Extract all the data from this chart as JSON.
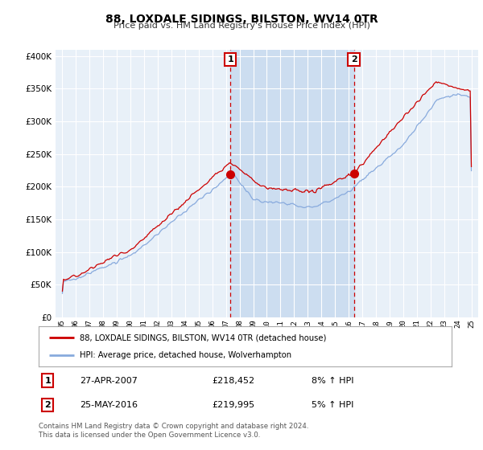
{
  "title": "88, LOXDALE SIDINGS, BILSTON, WV14 0TR",
  "subtitle": "Price paid vs. HM Land Registry's House Price Index (HPI)",
  "background_color": "#ffffff",
  "plot_bg_color": "#e8f0f8",
  "grid_color": "#ffffff",
  "red_line_color": "#cc0000",
  "blue_line_color": "#88aadd",
  "shade_color": "#ccddf0",
  "marker1_x": 2007.32,
  "marker1_y": 218452,
  "marker2_x": 2016.38,
  "marker2_y": 219995,
  "vline1_x": 2007.32,
  "vline2_x": 2016.38,
  "legend_line1": "88, LOXDALE SIDINGS, BILSTON, WV14 0TR (detached house)",
  "legend_line2": "HPI: Average price, detached house, Wolverhampton",
  "footer": "Contains HM Land Registry data © Crown copyright and database right 2024.\nThis data is licensed under the Open Government Licence v3.0.",
  "ylim": [
    0,
    410000
  ],
  "xlim": [
    1994.5,
    2025.5
  ]
}
